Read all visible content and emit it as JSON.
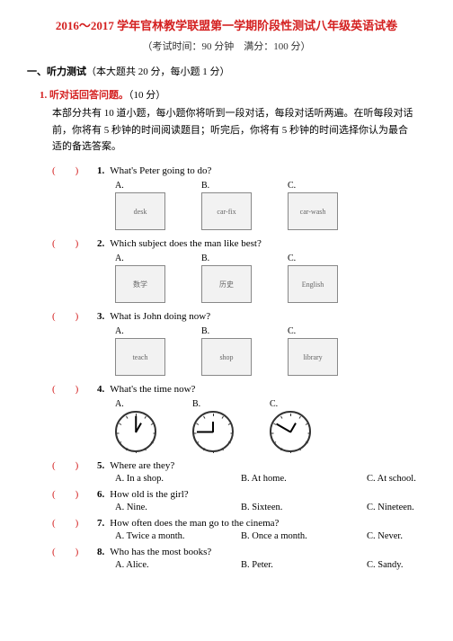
{
  "title": "2016～2017 学年官林教学联盟第一学期阶段性测试八年级英语试卷",
  "subtitle_time": "（考试时间：90 分钟",
  "subtitle_score": "满分：100 分）",
  "section1": "一、听力测试",
  "section1_note": "（本大题共 20 分，每小题 1 分）",
  "sub1": "1. 听对话回答问题。",
  "sub1_score": "（10 分）",
  "instructions": "本部分共有 10 道小题，每小题你将听到一段对话，每段对话听两遍。在听每段对话前，你将有 5 秒钟的时间阅读题目；听完后，你将有 5 秒钟的时间选择你认为最合适的备选答案。",
  "questions": [
    {
      "n": "1.",
      "text": "What's Peter going to do?",
      "imgs": [
        "desk",
        "car-fix",
        "car-wash"
      ]
    },
    {
      "n": "2.",
      "text": "Which subject does the man like best?",
      "imgs": [
        "数学",
        "历史",
        "English"
      ]
    },
    {
      "n": "3.",
      "text": "What is John doing now?",
      "imgs": [
        "teach",
        "shop",
        "library"
      ]
    },
    {
      "n": "4.",
      "text": "What's the time now?",
      "clocks": true
    }
  ],
  "textQuestions": [
    {
      "n": "5.",
      "text": "Where are they?",
      "a": "A. In a shop.",
      "b": "B. At home.",
      "c": "C. At school."
    },
    {
      "n": "6.",
      "text": "How old is the girl?",
      "a": "A. Nine.",
      "b": "B. Sixteen.",
      "c": "C. Nineteen."
    },
    {
      "n": "7.",
      "text": "How often does the man go to the cinema?",
      "a": "A. Twice a month.",
      "b": "B. Once a month.",
      "c": "C. Never."
    },
    {
      "n": "8.",
      "text": "Who has the most books?",
      "a": "A. Alice.",
      "b": "B. Peter.",
      "c": "C. Sandy."
    }
  ],
  "choice_labels": [
    "A.",
    "B.",
    "C."
  ],
  "paren_text": "(　　)"
}
